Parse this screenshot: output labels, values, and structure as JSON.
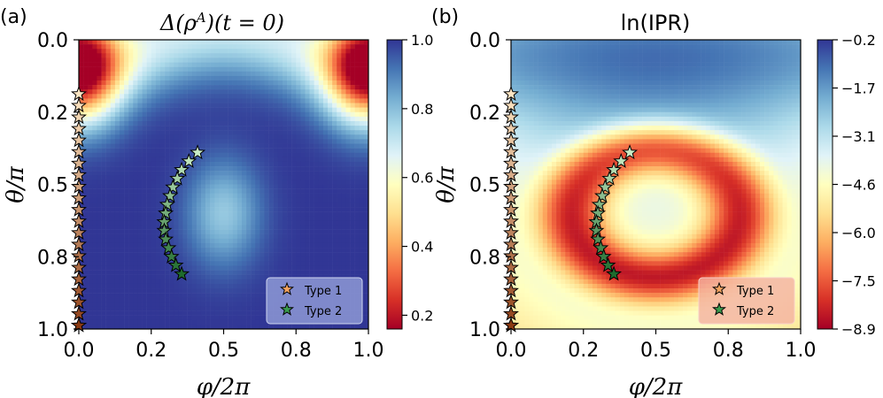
{
  "chart_data": [
    {
      "type": "heatmap",
      "panel_label": "(a)",
      "title": "Δ(ρ^A)(t = 0)",
      "title_parts": {
        "delta": "Δ(",
        "rho": "ρ",
        "sup": "A",
        "rest": ")(t = 0)"
      },
      "xlabel": "φ/2π",
      "ylabel": "θ/π",
      "xlim": [
        0.0,
        1.0
      ],
      "ylim": [
        0.0,
        1.0
      ],
      "y_inverted": true,
      "x_ticks": [
        "0.0",
        "0.2",
        "0.5",
        "0.8",
        "1.0"
      ],
      "x_tick_values": [
        0.0,
        0.25,
        0.5,
        0.75,
        1.0
      ],
      "y_ticks": [
        "0.0",
        "0.2",
        "0.5",
        "0.8",
        "1.0"
      ],
      "y_tick_values": [
        0.0,
        0.25,
        0.5,
        0.75,
        1.0
      ],
      "colormap": "RdYlBu",
      "colorbar_range": [
        0.16,
        1.0
      ],
      "colorbar_ticks": [
        "1.0",
        "0.8",
        "0.6",
        "0.4",
        "0.2"
      ],
      "colorbar_tick_values": [
        1.0,
        0.8,
        0.6,
        0.4,
        0.2
      ],
      "field_description": "minimum near theta≈0.1 at phi=0 and phi=1; high (~1) elsewhere with a dip to ~0.8 around phi=0.5, theta=0.6",
      "legend": {
        "placement": "bottom-right",
        "entries": [
          "Type 1",
          "Type 2"
        ],
        "colors": [
          "#f4a460",
          "#3a9c4e"
        ]
      }
    },
    {
      "type": "heatmap",
      "panel_label": "(b)",
      "title": "ln(IPR)",
      "xlabel": "φ/2π",
      "ylabel": "θ/π",
      "xlim": [
        0.0,
        1.0
      ],
      "ylim": [
        0.0,
        1.0
      ],
      "y_inverted": true,
      "x_ticks": [
        "0.0",
        "0.2",
        "0.5",
        "0.8",
        "1.0"
      ],
      "x_tick_values": [
        0.0,
        0.25,
        0.5,
        0.75,
        1.0
      ],
      "y_ticks": [
        "0.0",
        "0.2",
        "0.5",
        "0.8",
        "1.0"
      ],
      "y_tick_values": [
        0.0,
        0.25,
        0.5,
        0.75,
        1.0
      ],
      "colormap": "RdYlBu",
      "colorbar_range": [
        -8.9,
        -0.2
      ],
      "colorbar_ticks": [
        "−0.2",
        "−1.7",
        "−3.1",
        "−4.6",
        "−6.0",
        "−7.5",
        "−8.9"
      ],
      "colorbar_tick_values": [
        -0.2,
        -1.65,
        -3.1,
        -4.55,
        -6.0,
        -7.45,
        -8.9
      ],
      "field_description": "high (~-0.2) near theta=0; red ring (~-8.5) centered at phi=0.5, theta=0.6; lighter core (~-3) at center",
      "legend": {
        "placement": "bottom-right",
        "entries": [
          "Type 1",
          "Type 2"
        ],
        "colors": [
          "#f4a460",
          "#3a9c4e"
        ]
      }
    }
  ],
  "markers": {
    "type1": {
      "name": "Type 1",
      "phi": [
        0,
        0,
        0,
        0,
        0,
        0,
        0,
        0,
        0,
        0,
        0,
        0,
        0,
        0,
        0,
        0,
        0,
        0,
        0,
        0,
        0,
        0
      ],
      "theta": [
        0.2,
        0.24,
        0.28,
        0.32,
        0.36,
        0.4,
        0.44,
        0.48,
        0.52,
        0.56,
        0.6,
        0.64,
        0.68,
        0.72,
        0.76,
        0.8,
        0.84,
        0.88,
        0.92,
        0.96,
        1.0,
        1.0
      ]
    },
    "type2": {
      "name": "Type 2",
      "phi": [
        0.41,
        0.38,
        0.355,
        0.34,
        0.325,
        0.315,
        0.305,
        0.3,
        0.295,
        0.295,
        0.3,
        0.31,
        0.32,
        0.335,
        0.355
      ],
      "theta": [
        0.39,
        0.42,
        0.45,
        0.48,
        0.51,
        0.54,
        0.57,
        0.6,
        0.63,
        0.66,
        0.69,
        0.72,
        0.75,
        0.78,
        0.81
      ]
    }
  }
}
